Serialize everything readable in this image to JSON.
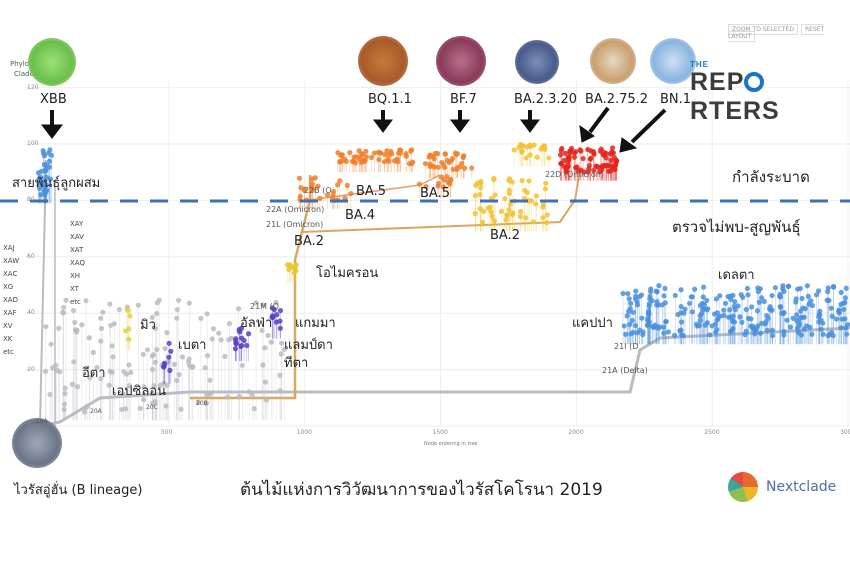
{
  "header": {
    "panel_title": "Phylogeny",
    "panel_sub": "Clade",
    "zoom_selected": "ZOOM TO SELECTED",
    "reset_layout": "RESET LAYOUT"
  },
  "brand": {
    "the": "THE",
    "name_a": "REP",
    "name_b": "RTERS"
  },
  "zones": {
    "spreading": "กำลังระบาด",
    "extinct": "ตรวจไม่พบ-สูญพันธุ์"
  },
  "title": "ต้นไม้แห่งการวิวัฒนาการของไวรัสโคโรนา 2019",
  "nextclade": "Nextclade",
  "labels": {
    "xbb": "XBB",
    "recombinant": "สายพันธุ์ลูกผสม",
    "bq": "BQ.1.1",
    "bf7": "BF.7",
    "ba2320": "BA.2.3.20",
    "ba2752": "BA.2.75.2",
    "bn1": "BN.1",
    "ba5a": "BA.5",
    "ba5b": "BA.5",
    "ba4": "BA.4",
    "ba2a": "BA.2",
    "ba2b": "BA.2",
    "omicron": "โอไมครอน",
    "gamma": "แกมมา",
    "lambda": "แลมป์ดา",
    "theta": "ทีตา",
    "alpha": "อัลฟ่า",
    "beta": "เบตา",
    "mu": "มิว",
    "eta": "อีตา",
    "epsilon": "เอปซิลอน",
    "kappa": "แคปปา",
    "delta": "เดลตา",
    "wuhan": "ไวรัสอู่ฮั่น (B lineage)",
    "c22a": "22A (Omicron)",
    "c21l": "21L (Omicron)",
    "c22b": "22B (O",
    "c22d": "22D (Omicron)",
    "c21m": "21M (O",
    "c21i": "21I (D",
    "c21a": "21A (Delta)",
    "c20a": "20A",
    "c19a": "19A",
    "c20c": "20C",
    "c20b": "20B"
  },
  "recombinants_left": [
    "XAJ",
    "XAW",
    "XAC",
    "XG",
    "XAD",
    "XAF",
    "XV",
    "XK",
    "etc"
  ],
  "recombinants_right": [
    "XAY",
    "XAV",
    "XAT",
    "XAQ",
    "XH",
    "XT",
    "etc"
  ],
  "colors": {
    "divider": "#3f6fb8",
    "gray": "#b9bcc2",
    "orange": "#f07f2a",
    "yellow": "#f1c232",
    "red": "#e3261f",
    "blue": "#4a8fdc",
    "purple": "#5b3fc4",
    "green": "#7ecb6f"
  },
  "chart_data": {
    "type": "scatter",
    "title": "",
    "xlabel": "Node ordering in tree",
    "ylabel": "",
    "xlim": [
      0,
      3000
    ],
    "ylim": [
      0,
      125
    ],
    "x_ticks": [
      "500",
      "1000",
      "1500",
      "2000",
      "2500",
      "3000"
    ],
    "y_ticks": [
      "0",
      "20",
      "40",
      "60",
      "80",
      "100",
      "120"
    ],
    "grid": true,
    "clusters": [
      {
        "name": "gray-early",
        "color": "#b9bcc2",
        "x": [
          40,
          950
        ],
        "y": [
          5,
          45
        ],
        "n": 140
      },
      {
        "name": "xbb",
        "color": "#4a8fdc",
        "x": [
          20,
          70
        ],
        "y": [
          82,
          98
        ],
        "n": 30
      },
      {
        "name": "mu",
        "color": "#e0d24a",
        "x": [
          340,
          360
        ],
        "y": [
          30,
          42
        ],
        "n": 6
      },
      {
        "name": "beta",
        "color": "#5b3fc4",
        "x": [
          480,
          520
        ],
        "y": [
          18,
          30
        ],
        "n": 8
      },
      {
        "name": "alpha",
        "color": "#5b3fc4",
        "x": [
          740,
          800
        ],
        "y": [
          26,
          36
        ],
        "n": 14
      },
      {
        "name": "gamma",
        "color": "#5b3fc4",
        "x": [
          880,
          920
        ],
        "y": [
          34,
          44
        ],
        "n": 10
      },
      {
        "name": "omicron-ba1",
        "color": "#e8c52c",
        "x": [
          930,
          970
        ],
        "y": [
          54,
          58
        ],
        "n": 10
      },
      {
        "name": "ba5-low",
        "color": "#f07f2a",
        "x": [
          980,
          1180
        ],
        "y": [
          80,
          88
        ],
        "n": 25
      },
      {
        "name": "bq11",
        "color": "#f07f2a",
        "x": [
          1110,
          1400
        ],
        "y": [
          93,
          98
        ],
        "n": 55
      },
      {
        "name": "bf7",
        "color": "#f07f2a",
        "x": [
          1440,
          1620
        ],
        "y": [
          91,
          97
        ],
        "n": 35
      },
      {
        "name": "ba5-mid",
        "color": "#f07f2a",
        "x": [
          1400,
          1560
        ],
        "y": [
          84,
          90
        ],
        "n": 12
      },
      {
        "name": "ba2",
        "color": "#f1c232",
        "x": [
          1620,
          1900
        ],
        "y": [
          72,
          88
        ],
        "n": 55
      },
      {
        "name": "ba2320",
        "color": "#f1c232",
        "x": [
          1770,
          1900
        ],
        "y": [
          95,
          100
        ],
        "n": 20
      },
      {
        "name": "ba2752-bn1",
        "color": "#e3261f",
        "x": [
          1940,
          2150
        ],
        "y": [
          90,
          99
        ],
        "n": 80
      },
      {
        "name": "delta",
        "color": "#4a8fdc",
        "x": [
          2170,
          3000
        ],
        "y": [
          32,
          50
        ],
        "n": 260
      }
    ]
  }
}
